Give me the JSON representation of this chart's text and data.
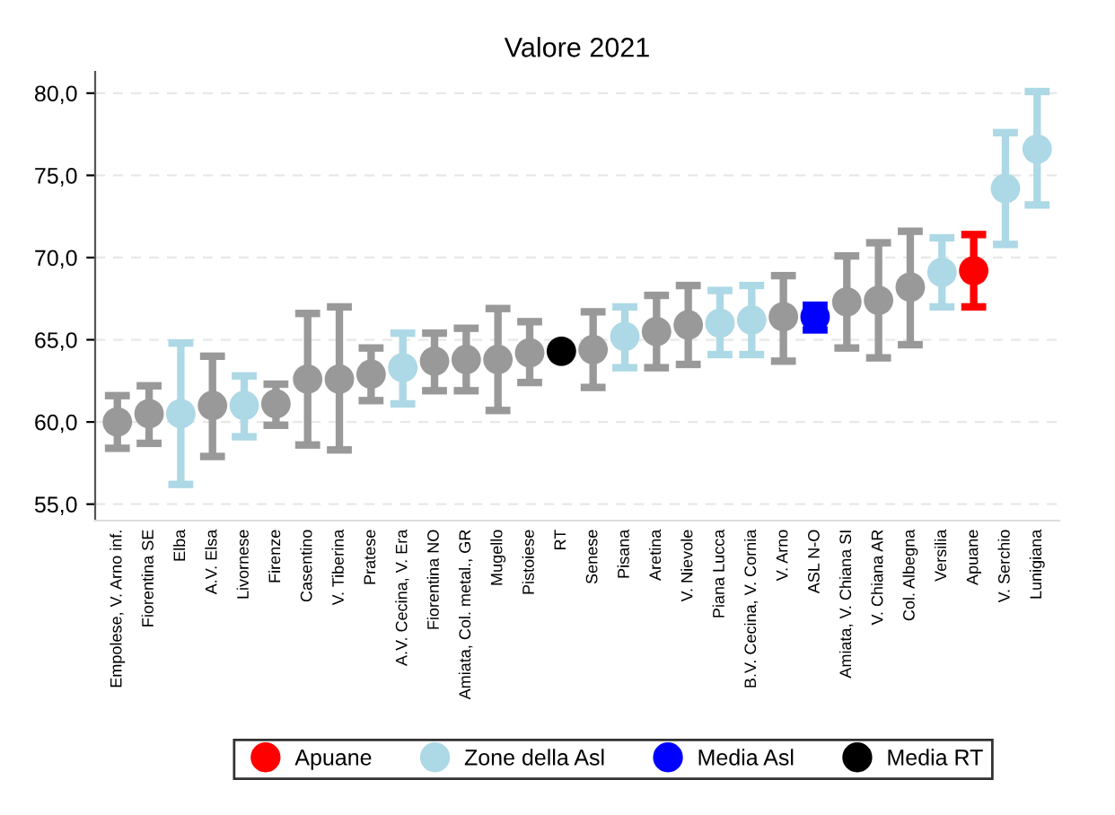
{
  "chart_data": {
    "type": "scatter",
    "title": "Valore 2021",
    "categories": [
      "Empolese, V. Arno inf.",
      "Fiorentina SE",
      "Elba",
      "A.V. Elsa",
      "Livornese",
      "Firenze",
      "Casentino",
      "V. Tiberina",
      "Pratese",
      "A.V. Cecina, V. Era",
      "Fiorentina NO",
      "Amiata, Col. metal., GR",
      "Mugello",
      "Pistoiese",
      "RT",
      "Senese",
      "Pisana",
      "Aretina",
      "V. Nievole",
      "Piana Lucca",
      "B.V. Cecina, V. Cornia",
      "V. Arno",
      "ASL N-O",
      "Amiata, V. Chiana SI",
      "V. Chiana AR",
      "Col. Albegna",
      "Versilia",
      "Apuane",
      "V. Serchio",
      "Lunigiana"
    ],
    "series": [
      {
        "color": "#999999",
        "values": [
          60.0,
          60.5,
          null,
          61.0,
          null,
          61.1,
          62.6,
          62.6,
          62.9,
          null,
          63.7,
          63.8,
          63.8,
          64.2,
          null,
          64.4,
          null,
          65.5,
          65.9,
          null,
          null,
          66.4,
          null,
          67.3,
          67.4,
          68.2,
          null,
          null,
          null,
          null
        ],
        "errors": [
          [
            58.4,
            61.6
          ],
          [
            58.7,
            62.2
          ],
          null,
          [
            57.9,
            64.0
          ],
          null,
          [
            59.8,
            62.3
          ],
          [
            58.6,
            66.6
          ],
          [
            58.3,
            67.0
          ],
          [
            61.3,
            64.5
          ],
          null,
          [
            61.9,
            65.4
          ],
          [
            61.9,
            65.7
          ],
          [
            60.7,
            66.9
          ],
          [
            62.4,
            66.1
          ],
          null,
          [
            62.1,
            66.7
          ],
          null,
          [
            63.3,
            67.7
          ],
          [
            63.5,
            68.3
          ],
          null,
          null,
          [
            63.7,
            68.9
          ],
          null,
          [
            64.5,
            70.1
          ],
          [
            63.9,
            70.9
          ],
          [
            64.7,
            71.6
          ],
          null,
          null,
          null,
          null
        ]
      },
      {
        "name": "Apuane",
        "color": "#ff0000",
        "values": [
          null,
          null,
          null,
          null,
          null,
          null,
          null,
          null,
          null,
          null,
          null,
          null,
          null,
          null,
          null,
          null,
          null,
          null,
          null,
          null,
          null,
          null,
          null,
          null,
          null,
          null,
          null,
          69.2,
          null,
          null
        ],
        "errors": [
          null,
          null,
          null,
          null,
          null,
          null,
          null,
          null,
          null,
          null,
          null,
          null,
          null,
          null,
          null,
          null,
          null,
          null,
          null,
          null,
          null,
          null,
          null,
          null,
          null,
          null,
          null,
          [
            67.0,
            71.4
          ],
          null,
          null
        ]
      },
      {
        "name": "Zone della Asl",
        "color": "#add8e6",
        "values": [
          null,
          null,
          60.5,
          null,
          61.0,
          null,
          null,
          null,
          null,
          63.3,
          null,
          null,
          null,
          null,
          null,
          null,
          65.2,
          null,
          null,
          66.0,
          66.2,
          null,
          null,
          null,
          null,
          null,
          69.1,
          null,
          74.2,
          76.6
        ],
        "errors": [
          null,
          null,
          [
            56.2,
            64.8
          ],
          null,
          [
            59.1,
            62.8
          ],
          null,
          null,
          null,
          null,
          [
            61.1,
            65.4
          ],
          null,
          null,
          null,
          null,
          null,
          null,
          [
            63.3,
            67.0
          ],
          null,
          null,
          [
            64.1,
            68.0
          ],
          [
            64.1,
            68.3
          ],
          null,
          null,
          null,
          null,
          null,
          [
            67.0,
            71.2
          ],
          null,
          [
            70.8,
            77.6
          ],
          [
            73.2,
            80.1
          ]
        ]
      },
      {
        "name": "Media Asl",
        "color": "#0000ff",
        "values": [
          null,
          null,
          null,
          null,
          null,
          null,
          null,
          null,
          null,
          null,
          null,
          null,
          null,
          null,
          null,
          null,
          null,
          null,
          null,
          null,
          null,
          null,
          66.4,
          null,
          null,
          null,
          null,
          null,
          null,
          null
        ],
        "errors": [
          null,
          null,
          null,
          null,
          null,
          null,
          null,
          null,
          null,
          null,
          null,
          null,
          null,
          null,
          null,
          null,
          null,
          null,
          null,
          null,
          null,
          null,
          [
            65.6,
            67.1
          ],
          null,
          null,
          null,
          null,
          null,
          null,
          null
        ]
      },
      {
        "name": "Media RT",
        "color": "#000000",
        "values": [
          null,
          null,
          null,
          null,
          null,
          null,
          null,
          null,
          null,
          null,
          null,
          null,
          null,
          null,
          64.3,
          null,
          null,
          null,
          null,
          null,
          null,
          null,
          null,
          null,
          null,
          null,
          null,
          null,
          null,
          null
        ]
      }
    ],
    "ylim": [
      54.0,
      81.3
    ],
    "yticks": [
      {
        "value": 55,
        "label": "55,0"
      },
      {
        "value": 60,
        "label": "60,0"
      },
      {
        "value": 65,
        "label": "65,0"
      },
      {
        "value": 70,
        "label": "70,0"
      },
      {
        "value": 75,
        "label": "75,0"
      },
      {
        "value": 80,
        "label": "80,0"
      }
    ],
    "grid": "y",
    "legend": "bottom",
    "marker": "circle"
  }
}
